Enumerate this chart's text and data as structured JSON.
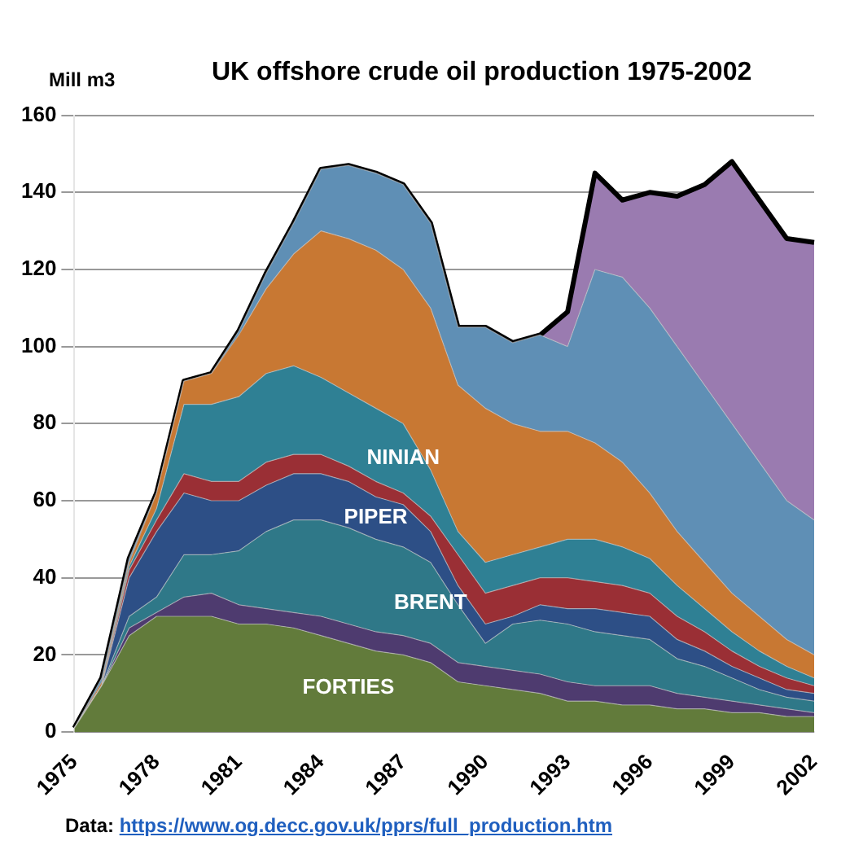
{
  "chart_data": {
    "type": "area",
    "title": "UK offshore crude oil production 1975-2002",
    "ylabel": "Mill m3",
    "categories": [
      "1975",
      null,
      null,
      "1978",
      null,
      null,
      "1981",
      null,
      null,
      "1984",
      null,
      null,
      "1987",
      null,
      null,
      "1990",
      null,
      null,
      "1993",
      null,
      null,
      "1996",
      null,
      null,
      "1999",
      null,
      null,
      "2002"
    ],
    "stacked": true,
    "ylim": [
      0,
      160
    ],
    "yticks": [
      0,
      20,
      40,
      60,
      80,
      100,
      120,
      140,
      160
    ],
    "grid": "y",
    "legend": false,
    "marker": "none",
    "series": [
      {
        "name": "FORTIES",
        "color": "#627b3b",
        "values": [
          1,
          12,
          25,
          30,
          30,
          30,
          28,
          28,
          27,
          25,
          23,
          21,
          20,
          18,
          13,
          12,
          11,
          10,
          8,
          8,
          7,
          7,
          6,
          6,
          5,
          5,
          4,
          4
        ]
      },
      {
        "color": "#4e3b6f",
        "values": [
          0,
          0,
          2,
          1,
          5,
          6,
          5,
          4,
          4,
          5,
          5,
          5,
          5,
          5,
          5,
          5,
          5,
          5,
          5,
          4,
          5,
          5,
          4,
          3,
          3,
          2,
          2,
          1
        ]
      },
      {
        "name": "BRENT",
        "color": "#2f7888",
        "values": [
          0,
          0,
          3,
          4,
          11,
          10,
          14,
          20,
          24,
          25,
          25,
          24,
          23,
          21,
          15,
          6,
          12,
          14,
          15,
          14,
          13,
          12,
          9,
          8,
          6,
          4,
          3,
          3
        ]
      },
      {
        "name": "PIPER",
        "color": "#2d4f86",
        "values": [
          0,
          0,
          10,
          17,
          16,
          14,
          13,
          12,
          12,
          12,
          12,
          11,
          11,
          8,
          5,
          5,
          2,
          4,
          4,
          6,
          6,
          6,
          5,
          4,
          3,
          3,
          2,
          2
        ]
      },
      {
        "color": "#9a2f35",
        "values": [
          0,
          0,
          2,
          3,
          5,
          5,
          5,
          6,
          5,
          5,
          4,
          4,
          3,
          4,
          8,
          8,
          8,
          7,
          8,
          7,
          7,
          6,
          6,
          5,
          4,
          3,
          3,
          2
        ]
      },
      {
        "name": "NINIAN",
        "color": "#2f8094",
        "values": [
          0,
          0,
          1,
          3,
          18,
          20,
          22,
          23,
          23,
          20,
          19,
          19,
          18,
          12,
          6,
          8,
          8,
          8,
          10,
          11,
          10,
          9,
          8,
          6,
          5,
          4,
          3,
          2
        ]
      },
      {
        "color": "#c87833",
        "values": [
          0,
          1,
          1,
          4,
          6,
          8,
          16,
          22,
          29,
          38,
          40,
          41,
          40,
          42,
          38,
          40,
          34,
          30,
          28,
          25,
          22,
          17,
          14,
          12,
          10,
          9,
          7,
          6
        ]
      },
      {
        "color": "#5f8fb5",
        "values": [
          0,
          1,
          1,
          0,
          0,
          0,
          1,
          4,
          8,
          16,
          19,
          20,
          22,
          22,
          15,
          21,
          21,
          25,
          22,
          45,
          48,
          48,
          48,
          46,
          44,
          40,
          36,
          35
        ]
      },
      {
        "color": "#9a7bb0",
        "values": [
          0,
          0,
          0,
          0,
          0,
          0,
          0,
          0,
          0,
          0,
          0,
          0,
          0,
          0,
          0,
          0,
          0,
          0,
          9,
          25,
          20,
          30,
          39,
          52,
          68,
          68,
          68,
          72
        ]
      }
    ],
    "annotations": [
      "Data: https://www.og.decc.gov.uk/pprs/full_production.htm"
    ]
  }
}
